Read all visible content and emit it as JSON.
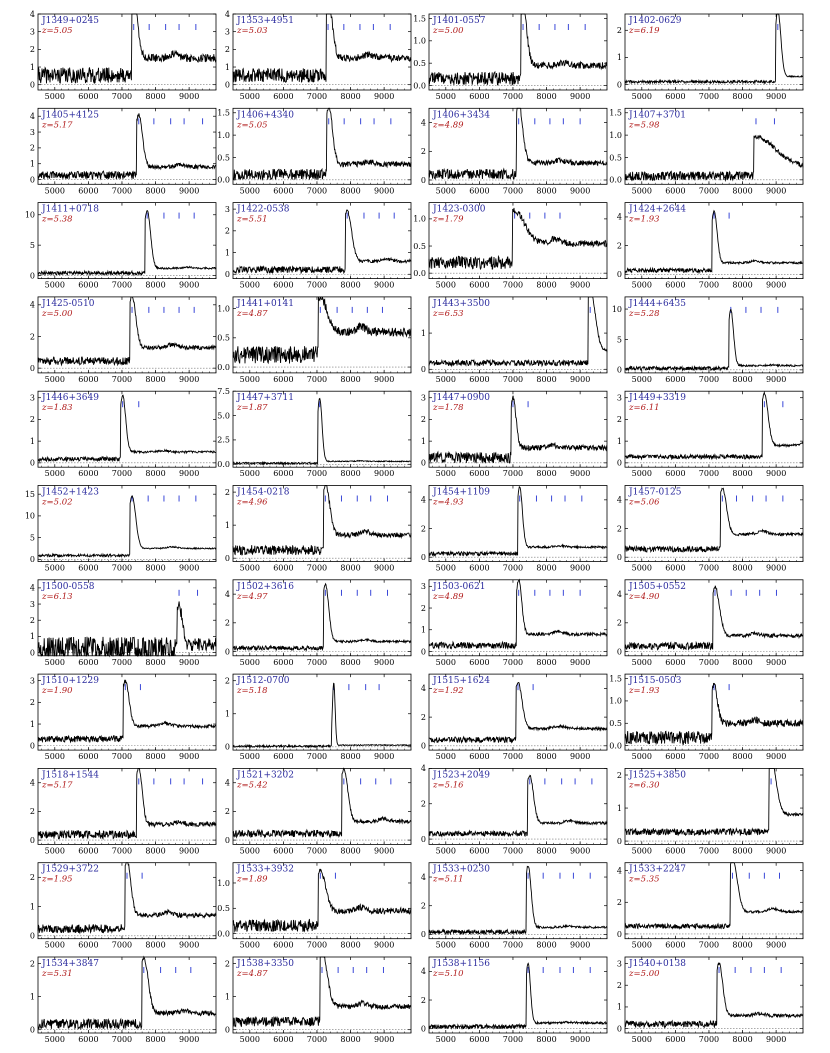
{
  "xticks": [
    "5000",
    "6000",
    "7000",
    "8000",
    "9000"
  ],
  "xlim": [
    4500,
    9800
  ],
  "colors": {
    "name": "#2b2b9e",
    "z": "#b11c1c",
    "mark": "#3a48d8",
    "line": "#000000",
    "axis": "#000000"
  },
  "chart_data": [
    {
      "type": "line",
      "name": "J1349+0245",
      "z": "z=5.05",
      "ylim": [
        -0.3,
        4
      ],
      "yticks": [
        "0",
        "1",
        "2",
        "3",
        "4"
      ],
      "peak": 7350,
      "amp": 3.2,
      "cont": 1.5,
      "width": 120,
      "noise": 0.45,
      "marks": [
        7350,
        7810,
        8300,
        8700,
        9200
      ]
    },
    {
      "type": "line",
      "name": "J1353+4951",
      "z": "z=5.03",
      "ylim": [
        -0.3,
        4
      ],
      "yticks": [
        "0",
        "1",
        "2",
        "3",
        "4"
      ],
      "peak": 7330,
      "amp": 3.4,
      "cont": 1.5,
      "width": 120,
      "noise": 0.4,
      "marks": [
        7330,
        7800,
        8280,
        8680,
        9180
      ]
    },
    {
      "type": "line",
      "name": "J1401-0557",
      "z": "z=5.00",
      "ylim": [
        -0.1,
        1.6
      ],
      "yticks": [
        "0.0",
        "0.5",
        "1.0",
        "1.5"
      ],
      "peak": 7300,
      "amp": 1.3,
      "cont": 0.45,
      "width": 110,
      "noise": 0.15,
      "marks": [
        7300,
        7780,
        8250,
        8650,
        9150
      ]
    },
    {
      "type": "line",
      "name": "J1402-0629",
      "z": "z=6.19",
      "ylim": [
        -0.2,
        2.6
      ],
      "yticks": [
        "0",
        "1",
        "2"
      ],
      "peak": 9050,
      "amp": 2.4,
      "cont": 0.3,
      "width": 90,
      "noise": 0.05,
      "marks": [
        9050
      ]
    },
    {
      "type": "line",
      "name": "J1405+4125",
      "z": "z=5.17",
      "ylim": [
        -0.3,
        4.5
      ],
      "yticks": [
        "0",
        "1",
        "2",
        "3",
        "4"
      ],
      "peak": 7500,
      "amp": 3.3,
      "cont": 0.8,
      "width": 110,
      "noise": 0.25,
      "marks": [
        7500,
        7950,
        8450,
        8850,
        9400
      ]
    },
    {
      "type": "line",
      "name": "J1406+4340",
      "z": "z=5.05",
      "ylim": [
        -0.1,
        1.6
      ],
      "yticks": [
        "0.0",
        "0.5",
        "1.0",
        "1.5"
      ],
      "peak": 7350,
      "amp": 1.3,
      "cont": 0.35,
      "width": 110,
      "noise": 0.12,
      "marks": [
        7350,
        7810,
        8300,
        8700,
        9200
      ]
    },
    {
      "type": "line",
      "name": "J1406+3434",
      "z": "z=4.89",
      "ylim": [
        -0.3,
        5
      ],
      "yticks": [
        "0",
        "2",
        "4"
      ],
      "peak": 7170,
      "amp": 4.1,
      "cont": 1.2,
      "width": 120,
      "noise": 0.35,
      "marks": [
        7170,
        7650,
        8100,
        8500,
        9000
      ]
    },
    {
      "type": "line",
      "name": "J1407+3701",
      "z": "z=5.98",
      "ylim": [
        -0.1,
        1.6
      ],
      "yticks": [
        "0.0",
        "0.5",
        "1.0",
        "1.5"
      ],
      "peak": 8400,
      "amp": 0.7,
      "cont": 0.25,
      "width": 600,
      "noise": 0.1,
      "marks": [
        8400,
        8950
      ]
    },
    {
      "type": "line",
      "name": "J1411+0718",
      "z": "z=5.38",
      "ylim": [
        -0.5,
        12
      ],
      "yticks": [
        "0",
        "5",
        "10"
      ],
      "peak": 7750,
      "amp": 9.5,
      "cont": 1.2,
      "width": 100,
      "noise": 0.3,
      "marks": [
        7750,
        8250,
        8700,
        9150
      ]
    },
    {
      "type": "line",
      "name": "J1422-0538",
      "z": "z=5.51",
      "ylim": [
        -0.2,
        3.3
      ],
      "yticks": [
        "0",
        "1",
        "2",
        "3"
      ],
      "peak": 7900,
      "amp": 2.3,
      "cont": 0.6,
      "width": 130,
      "noise": 0.15,
      "marks": [
        7900,
        8400,
        8850,
        9300
      ]
    },
    {
      "type": "line",
      "name": "J1423-0300",
      "z": "z=1.79",
      "ylim": [
        -0.1,
        1.3
      ],
      "yticks": [
        "0.0",
        "0.5",
        "1.0"
      ],
      "peak": 7050,
      "amp": 0.6,
      "cont": 0.55,
      "width": 300,
      "noise": 0.12,
      "marks": [
        7050,
        7500,
        7950,
        8400
      ]
    },
    {
      "type": "line",
      "name": "J1424+2644",
      "z": "z=1.93",
      "ylim": [
        -0.3,
        5
      ],
      "yticks": [
        "0",
        "2",
        "4"
      ],
      "peak": 7150,
      "amp": 3.6,
      "cont": 0.8,
      "width": 90,
      "noise": 0.15,
      "marks": [
        7150,
        7600
      ]
    },
    {
      "type": "line",
      "name": "J1425-0510",
      "z": "z=5.00",
      "ylim": [
        -0.3,
        4.5
      ],
      "yticks": [
        "0",
        "2",
        "4"
      ],
      "peak": 7300,
      "amp": 3.3,
      "cont": 1.3,
      "width": 110,
      "noise": 0.25,
      "marks": [
        7300,
        7800,
        8250,
        8700,
        9150
      ]
    },
    {
      "type": "line",
      "name": "J1441+0141",
      "z": "z=4.87",
      "ylim": [
        -0.1,
        1.2
      ],
      "yticks": [
        "0.0",
        "0.5",
        "1.0"
      ],
      "peak": 7100,
      "amp": 0.6,
      "cont": 0.6,
      "width": 200,
      "noise": 0.15,
      "marks": [
        7100,
        7600,
        8050,
        8500,
        8950
      ]
    },
    {
      "type": "line",
      "name": "J1443+3500",
      "z": "z=6.53",
      "ylim": [
        -0.1,
        2
      ],
      "yticks": [
        "0",
        "1"
      ],
      "peak": 9300,
      "amp": 1.7,
      "cont": 0.5,
      "width": 150,
      "noise": 0.08,
      "marks": [
        9300
      ]
    },
    {
      "type": "line",
      "name": "J1444+6435",
      "z": "z=5.28",
      "ylim": [
        -0.5,
        12
      ],
      "yticks": [
        "0",
        "5",
        "10"
      ],
      "peak": 7650,
      "amp": 9.2,
      "cont": 0.7,
      "width": 80,
      "noise": 0.3,
      "marks": [
        7650,
        8100,
        8550,
        9050
      ]
    },
    {
      "type": "line",
      "name": "J1446+3649",
      "z": "z=1.83",
      "ylim": [
        -0.2,
        3.3
      ],
      "yticks": [
        "0",
        "1",
        "2",
        "3"
      ],
      "peak": 7020,
      "amp": 2.6,
      "cont": 0.5,
      "width": 90,
      "noise": 0.1,
      "marks": [
        7020,
        7500
      ]
    },
    {
      "type": "line",
      "name": "J1447+3711",
      "z": "z=1.87",
      "ylim": [
        -0.3,
        7.5
      ],
      "yticks": [
        "0.0",
        "2.5",
        "5.0",
        "7.5"
      ],
      "peak": 7080,
      "amp": 6.5,
      "cont": 0.3,
      "width": 70,
      "noise": 0.1,
      "marks": [
        7080
      ]
    },
    {
      "type": "line",
      "name": "J1447+0900",
      "z": "z=1.78",
      "ylim": [
        -0.2,
        3.3
      ],
      "yticks": [
        "0",
        "1",
        "2",
        "3"
      ],
      "peak": 7000,
      "amp": 2.3,
      "cont": 0.7,
      "width": 90,
      "noise": 0.25,
      "marks": [
        7000,
        7450
      ]
    },
    {
      "type": "line",
      "name": "J1449+3319",
      "z": "z=6.11",
      "ylim": [
        -0.2,
        3.3
      ],
      "yticks": [
        "0",
        "1",
        "2",
        "3"
      ],
      "peak": 8650,
      "amp": 2.4,
      "cont": 0.8,
      "width": 110,
      "noise": 0.1,
      "marks": [
        8650,
        9200
      ]
    },
    {
      "type": "line",
      "name": "J1452+1423",
      "z": "z=5.02",
      "ylim": [
        -0.5,
        17
      ],
      "yticks": [
        "0",
        "5",
        "10",
        "15"
      ],
      "peak": 7300,
      "amp": 12,
      "cont": 2.5,
      "width": 110,
      "noise": 0.3,
      "marks": [
        7300,
        7780,
        8250,
        8700,
        9200
      ]
    },
    {
      "type": "line",
      "name": "J1454-0218",
      "z": "z=4.96",
      "ylim": [
        -0.1,
        2.2
      ],
      "yticks": [
        "0",
        "1",
        "2"
      ],
      "peak": 7250,
      "amp": 1.5,
      "cont": 0.7,
      "width": 130,
      "noise": 0.15,
      "marks": [
        7250,
        7730,
        8200,
        8600,
        9100
      ]
    },
    {
      "type": "line",
      "name": "J1454+1109",
      "z": "z=4.93",
      "ylim": [
        -0.3,
        5
      ],
      "yticks": [
        "0",
        "2",
        "4"
      ],
      "peak": 7200,
      "amp": 4.2,
      "cont": 0.7,
      "width": 80,
      "noise": 0.15,
      "marks": [
        7200,
        7700,
        8150,
        8550,
        9050
      ]
    },
    {
      "type": "line",
      "name": "J1457-0125",
      "z": "z=5.06",
      "ylim": [
        -0.3,
        5
      ],
      "yticks": [
        "0",
        "2",
        "4"
      ],
      "peak": 7400,
      "amp": 3.2,
      "cont": 1.6,
      "width": 120,
      "noise": 0.2,
      "marks": [
        7400,
        7820,
        8300,
        8700,
        9200
      ]
    },
    {
      "type": "line",
      "name": "J1500-0558",
      "z": "z=6.13",
      "ylim": [
        -0.2,
        4.5
      ],
      "yticks": [
        "0",
        "1",
        "2",
        "3",
        "4"
      ],
      "peak": 8700,
      "amp": 2.5,
      "cont": 0.5,
      "width": 90,
      "noise": 0.8,
      "marks": [
        8700,
        9250
      ]
    },
    {
      "type": "line",
      "name": "J1502+3616",
      "z": "z=4.97",
      "ylim": [
        -0.3,
        5
      ],
      "yticks": [
        "0",
        "2",
        "4"
      ],
      "peak": 7250,
      "amp": 4,
      "cont": 0.7,
      "width": 100,
      "noise": 0.15,
      "marks": [
        7250,
        7730,
        8200,
        8600,
        9100
      ]
    },
    {
      "type": "line",
      "name": "J1503-0621",
      "z": "z=4.89",
      "ylim": [
        -0.2,
        3.3
      ],
      "yticks": [
        "0",
        "1",
        "2",
        "3"
      ],
      "peak": 7170,
      "amp": 2.5,
      "cont": 0.8,
      "width": 90,
      "noise": 0.15,
      "marks": [
        7170,
        7650,
        8100,
        8500,
        9000
      ]
    },
    {
      "type": "line",
      "name": "J1505+0552",
      "z": "z=4.90",
      "ylim": [
        -0.3,
        5
      ],
      "yticks": [
        "0",
        "2",
        "4"
      ],
      "peak": 7180,
      "amp": 3.4,
      "cont": 1.1,
      "width": 130,
      "noise": 0.25,
      "marks": [
        7180,
        7660,
        8110,
        8510,
        9010
      ]
    },
    {
      "type": "line",
      "name": "J1510+1229",
      "z": "z=1.90",
      "ylim": [
        -0.2,
        3.3
      ],
      "yticks": [
        "0",
        "1",
        "2",
        "3"
      ],
      "peak": 7100,
      "amp": 2.1,
      "cont": 0.9,
      "width": 110,
      "noise": 0.15,
      "marks": [
        7100,
        7550
      ]
    },
    {
      "type": "line",
      "name": "J1512-0700",
      "z": "z=5.18",
      "ylim": [
        -0.1,
        2.2
      ],
      "yticks": [
        "0",
        "1",
        "2"
      ],
      "peak": 7500,
      "amp": 1.9,
      "cont": 0.05,
      "width": 40,
      "noise": 0.03,
      "marks": [
        7500,
        7950,
        8450,
        8850
      ]
    },
    {
      "type": "line",
      "name": "J1515+1624",
      "z": "z=1.92",
      "ylim": [
        -0.3,
        5
      ],
      "yticks": [
        "0",
        "2",
        "4"
      ],
      "peak": 7150,
      "amp": 3.2,
      "cont": 1.2,
      "width": 120,
      "noise": 0.2,
      "marks": [
        7150,
        7600
      ]
    },
    {
      "type": "line",
      "name": "J1515-0503",
      "z": "z=1.93",
      "ylim": [
        -0.1,
        1.6
      ],
      "yticks": [
        "0.0",
        "0.5",
        "1.0",
        "1.5"
      ],
      "peak": 7150,
      "amp": 0.85,
      "cont": 0.5,
      "width": 100,
      "noise": 0.15,
      "marks": [
        7150,
        7600
      ]
    },
    {
      "type": "line",
      "name": "J1518+1544",
      "z": "z=5.17",
      "ylim": [
        -0.3,
        5
      ],
      "yticks": [
        "0",
        "2",
        "4"
      ],
      "peak": 7500,
      "amp": 4,
      "cont": 1.1,
      "width": 100,
      "noise": 0.3,
      "marks": [
        7500,
        7950,
        8450,
        8850,
        9400
      ]
    },
    {
      "type": "line",
      "name": "J1521+3202",
      "z": "z=5.42",
      "ylim": [
        -0.3,
        5
      ],
      "yticks": [
        "0",
        "2",
        "4"
      ],
      "peak": 7800,
      "amp": 3.6,
      "cont": 1.3,
      "width": 120,
      "noise": 0.25,
      "marks": [
        7800,
        8300,
        8750,
        9200
      ]
    },
    {
      "type": "line",
      "name": "J1523+2049",
      "z": "z=5.16",
      "ylim": [
        -0.3,
        4
      ],
      "yticks": [
        "0",
        "2",
        "4"
      ],
      "peak": 7500,
      "amp": 2.7,
      "cont": 0.9,
      "width": 110,
      "noise": 0.15,
      "marks": [
        7500,
        7950,
        8450,
        8850,
        9350
      ]
    },
    {
      "type": "line",
      "name": "J1525+3850",
      "z": "z=6.30",
      "ylim": [
        -0.1,
        2.2
      ],
      "yticks": [
        "0",
        "1",
        "2"
      ],
      "peak": 8850,
      "amp": 1.7,
      "cont": 0.8,
      "width": 150,
      "noise": 0.1,
      "marks": [
        8850
      ]
    },
    {
      "type": "line",
      "name": "J1529+3722",
      "z": "z=1.95",
      "ylim": [
        -0.1,
        2.5
      ],
      "yticks": [
        "0",
        "1",
        "2"
      ],
      "peak": 7150,
      "amp": 1.9,
      "cont": 0.7,
      "width": 110,
      "noise": 0.15,
      "marks": [
        7150,
        7600
      ]
    },
    {
      "type": "line",
      "name": "J1533+3932",
      "z": "z=1.89",
      "ylim": [
        -0.1,
        1.4
      ],
      "yticks": [
        "0.0",
        "0.5",
        "1.0"
      ],
      "peak": 7100,
      "amp": 0.8,
      "cont": 0.45,
      "width": 150,
      "noise": 0.12,
      "marks": [
        7100,
        7550
      ]
    },
    {
      "type": "line",
      "name": "J1533+0230",
      "z": "z=5.11",
      "ylim": [
        -0.3,
        5
      ],
      "yticks": [
        "0",
        "2",
        "4"
      ],
      "peak": 7450,
      "amp": 4.3,
      "cont": 0.5,
      "width": 90,
      "noise": 0.15,
      "marks": [
        7450,
        7900,
        8400,
        8800,
        9300
      ]
    },
    {
      "type": "line",
      "name": "J1533+2247",
      "z": "z=5.35",
      "ylim": [
        -0.3,
        4.5
      ],
      "yticks": [
        "0",
        "2",
        "4"
      ],
      "peak": 7700,
      "amp": 3.3,
      "cont": 1.4,
      "width": 140,
      "noise": 0.15,
      "marks": [
        7700,
        8200,
        8650,
        9100
      ]
    },
    {
      "type": "line",
      "name": "J1534+3847",
      "z": "z=5.31",
      "ylim": [
        -0.1,
        2.2
      ],
      "yticks": [
        "0",
        "1",
        "2"
      ],
      "peak": 7650,
      "amp": 1.7,
      "cont": 0.5,
      "width": 130,
      "noise": 0.15,
      "marks": [
        7650,
        8150,
        8600,
        9050
      ]
    },
    {
      "type": "line",
      "name": "J1538+3350",
      "z": "z=4.87",
      "ylim": [
        -0.1,
        2.2
      ],
      "yticks": [
        "0",
        "1",
        "2"
      ],
      "peak": 7150,
      "amp": 1.7,
      "cont": 0.7,
      "width": 150,
      "noise": 0.15,
      "marks": [
        7150,
        7630,
        8080,
        8480,
        8980
      ]
    },
    {
      "type": "line",
      "name": "J1538+1156",
      "z": "z=5.10",
      "ylim": [
        -0.3,
        5
      ],
      "yticks": [
        "0",
        "2",
        "4"
      ],
      "peak": 7450,
      "amp": 4.2,
      "cont": 0.4,
      "width": 70,
      "noise": 0.15,
      "marks": [
        7450,
        7900,
        8400,
        8800,
        9300
      ]
    },
    {
      "type": "line",
      "name": "J1540+0138",
      "z": "z=5.00",
      "ylim": [
        -0.2,
        3.3
      ],
      "yticks": [
        "0",
        "1",
        "2",
        "3"
      ],
      "peak": 7300,
      "amp": 2.4,
      "cont": 0.6,
      "width": 110,
      "noise": 0.15,
      "marks": [
        7300,
        7780,
        8250,
        8650,
        9150
      ]
    }
  ]
}
